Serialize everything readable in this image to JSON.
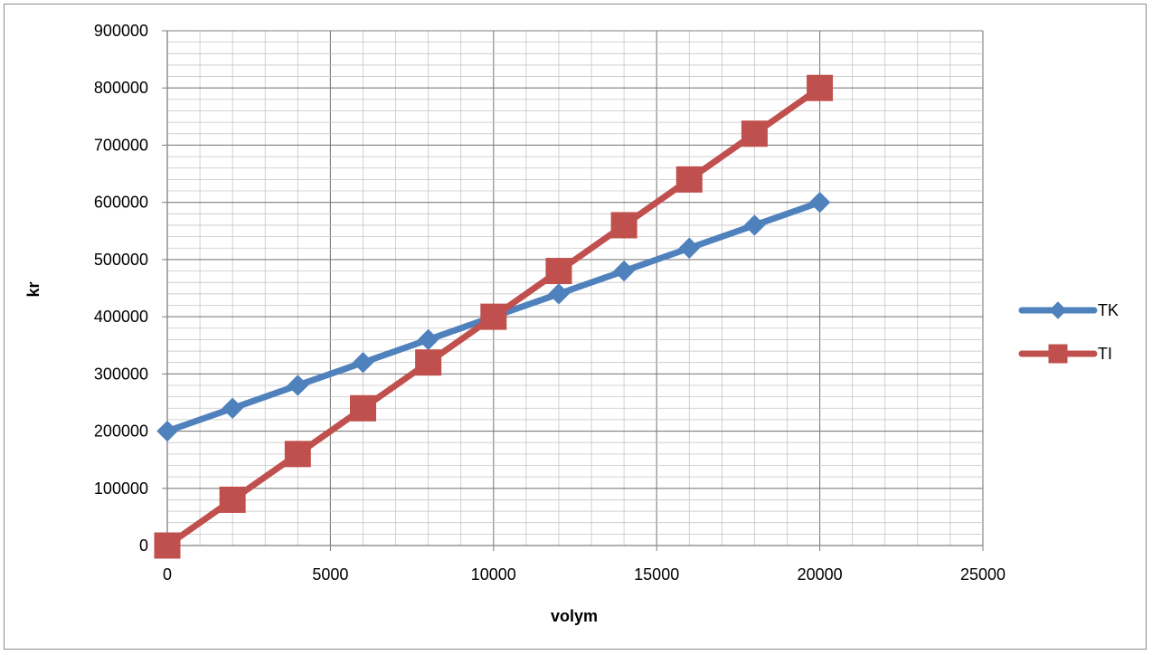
{
  "chart_data": {
    "type": "line",
    "xlabel": "volym",
    "ylabel": "kr",
    "xlim": [
      0,
      25000
    ],
    "ylim": [
      0,
      900000
    ],
    "x_ticks": [
      0,
      5000,
      10000,
      15000,
      20000,
      25000
    ],
    "y_ticks": [
      0,
      100000,
      200000,
      300000,
      400000,
      500000,
      600000,
      700000,
      800000,
      900000
    ],
    "x_minor_step": 1000,
    "y_minor_step": 20000,
    "grid": true,
    "legend": "right",
    "x": [
      0,
      2000,
      4000,
      6000,
      8000,
      10000,
      12000,
      14000,
      16000,
      18000,
      20000
    ],
    "series": [
      {
        "name": "TK",
        "marker": "diamond",
        "color": "#4f81bd",
        "values": [
          200000,
          240000,
          280000,
          320000,
          360000,
          400000,
          440000,
          480000,
          520000,
          560000,
          600000
        ]
      },
      {
        "name": "TI",
        "marker": "square",
        "color": "#c0504d",
        "values": [
          0,
          80000,
          160000,
          240000,
          320000,
          400000,
          480000,
          560000,
          640000,
          720000,
          800000
        ]
      }
    ]
  }
}
